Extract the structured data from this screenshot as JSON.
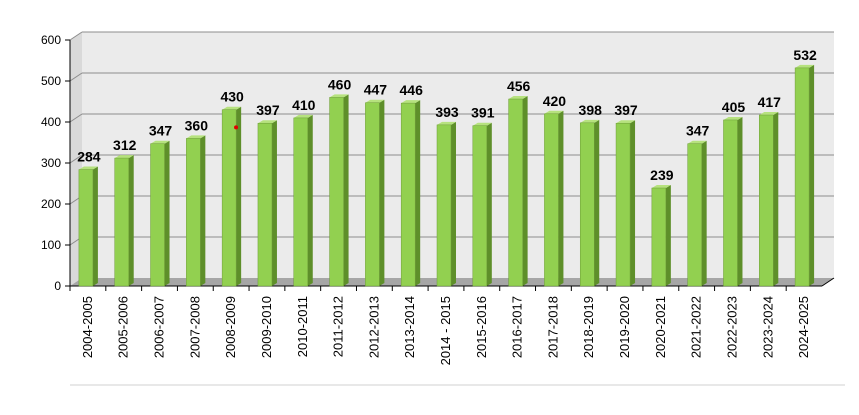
{
  "chart_data": {
    "type": "bar",
    "title": "",
    "xlabel": "",
    "ylabel": "",
    "ylim": [
      0,
      600
    ],
    "yticks": [
      0,
      100,
      200,
      300,
      400,
      500,
      600
    ],
    "ytick_labels": [
      "0",
      "100",
      "200",
      "300",
      "400",
      "500",
      "600"
    ],
    "grid": true,
    "legend": "none",
    "bar_style": "3d",
    "categories": [
      "2004-2005",
      "2005-2006",
      "2006-2007",
      "2007-2008",
      "2008-2009",
      "2009-2010",
      "2010-2011",
      "2011-2012",
      "2012-2013",
      "2013-2014",
      "2014 - 2015",
      "2015-2016",
      "2016-2017",
      "2017-2018",
      "2018-2019",
      "2019-2020",
      "2020-2021",
      "2021-2022",
      "2022-2023",
      "2023-2024",
      "2024-2025"
    ],
    "values": [
      284,
      312,
      347,
      360,
      430,
      397,
      410,
      460,
      447,
      446,
      393,
      391,
      456,
      420,
      398,
      397,
      239,
      347,
      405,
      417,
      532
    ],
    "data_labels": [
      "284",
      "312",
      "347",
      "360",
      "430",
      "397",
      "410",
      "460",
      "447",
      "446",
      "393",
      "391",
      "456",
      "420",
      "398",
      "397",
      "239",
      "347",
      "405",
      "417",
      "532"
    ],
    "colors": {
      "bar_front": "#92d050",
      "bar_side": "#5e8f2a",
      "bar_top": "#b6e27e",
      "plot_back": "#ebebeb",
      "floor": "#a6a6a6",
      "grid": "#8c8c8c",
      "marker": "#e00000"
    }
  }
}
